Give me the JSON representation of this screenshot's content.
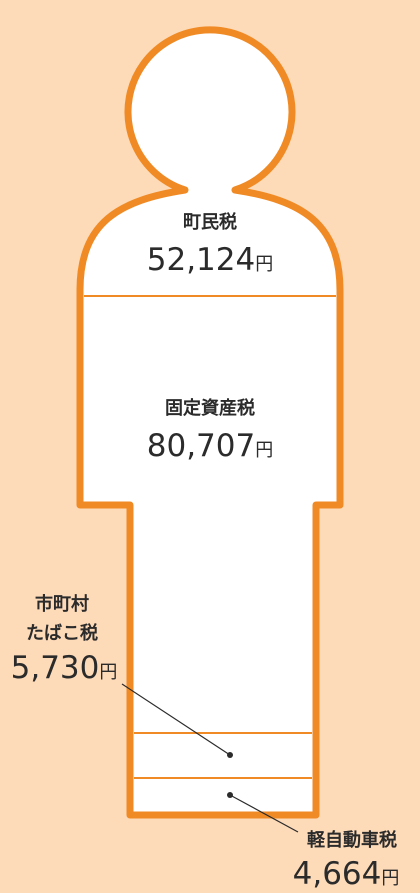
{
  "items": [
    {
      "label": "町民税",
      "amount": "52,124",
      "unit": "円"
    },
    {
      "label": "固定資産税",
      "amount": "80,707",
      "unit": "円"
    },
    {
      "label_lines": [
        "市町村",
        "たばこ税"
      ],
      "amount": "5,730",
      "unit": "円"
    },
    {
      "label": "軽自動車税",
      "amount": "4,664",
      "unit": "円"
    }
  ]
}
